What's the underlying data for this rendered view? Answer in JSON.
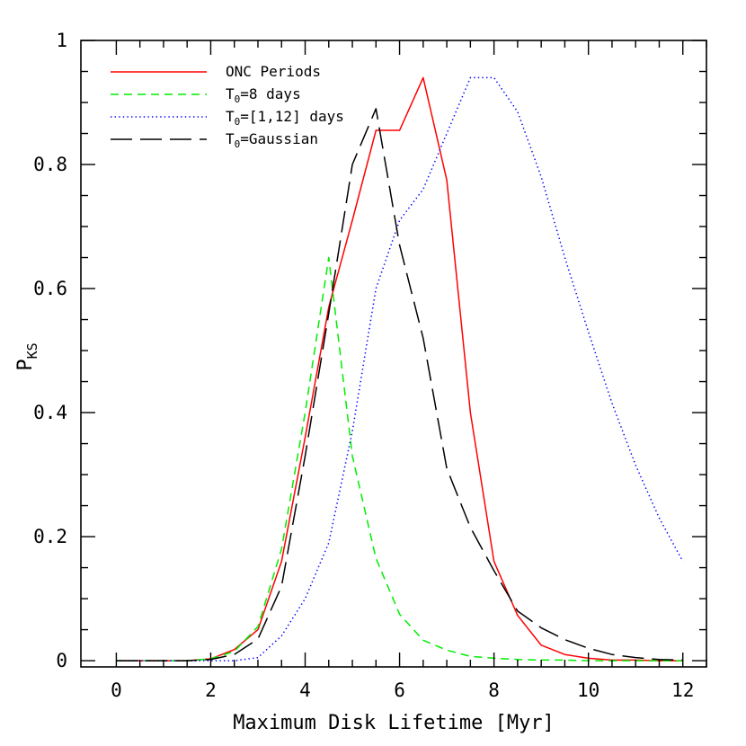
{
  "chart_data": {
    "type": "line",
    "xlabel": "Maximum Disk Lifetime [Myr]",
    "ylabel": "P",
    "ylabel_sub": "KS",
    "xlim": [
      -0.75,
      12.5
    ],
    "ylim": [
      -0.01,
      1.0
    ],
    "x_ticks": [
      0,
      2,
      4,
      6,
      8,
      10,
      12
    ],
    "y_ticks": [
      0,
      0.2,
      0.4,
      0.6,
      0.8,
      1
    ],
    "y_tick_labels": [
      "0",
      "0.2",
      "0.4",
      "0.6",
      "0.8",
      "1"
    ],
    "x_minor_step": 0.5,
    "y_minor_step": 0.05,
    "grid": false,
    "legend_position": "top-left",
    "series": [
      {
        "label": "ONC  Periods",
        "label_prefix": "",
        "label_sub": "",
        "color": "#ff0000",
        "dash": "solid",
        "x": [
          0,
          0.5,
          1,
          1.5,
          2,
          2.5,
          3,
          3.5,
          4,
          4.5,
          5,
          5.5,
          6,
          6.5,
          7,
          7.5,
          8,
          8.5,
          9,
          9.5,
          10,
          10.5,
          11,
          11.5,
          12
        ],
        "y": [
          0,
          0,
          0,
          0,
          0.003,
          0.018,
          0.05,
          0.16,
          0.36,
          0.57,
          0.71,
          0.855,
          0.855,
          0.94,
          0.775,
          0.4,
          0.16,
          0.073,
          0.025,
          0.01,
          0.004,
          0.001,
          0.001,
          0,
          0
        ]
      },
      {
        "label": "=8  days",
        "label_prefix": "T",
        "label_sub": "0",
        "color": "#00ee00",
        "dash": "dashed",
        "x": [
          0,
          0.5,
          1,
          1.5,
          2,
          2.5,
          3,
          3.5,
          4,
          4.5,
          5,
          5.5,
          6,
          6.5,
          7,
          7.5,
          8,
          8.5,
          9,
          9.5,
          10,
          10.5,
          11,
          11.5,
          12
        ],
        "y": [
          0,
          0,
          0,
          0,
          0.003,
          0.015,
          0.055,
          0.18,
          0.4,
          0.65,
          0.33,
          0.165,
          0.075,
          0.033,
          0.017,
          0.007,
          0.004,
          0.002,
          0.001,
          0.001,
          0,
          0,
          0,
          0,
          0
        ]
      },
      {
        "label": "=[1,12]  days",
        "label_prefix": "T",
        "label_sub": "0",
        "color": "#0000ff",
        "dash": "dotted",
        "x": [
          0,
          0.5,
          1,
          1.5,
          2,
          2.5,
          3,
          3.5,
          4,
          4.5,
          5,
          5.5,
          6,
          6.5,
          7,
          7.5,
          8,
          8.5,
          9,
          9.5,
          10,
          10.5,
          11,
          11.5,
          12
        ],
        "y": [
          0,
          0,
          0,
          0,
          0,
          0,
          0.005,
          0.04,
          0.1,
          0.19,
          0.37,
          0.6,
          0.71,
          0.76,
          0.85,
          0.94,
          0.94,
          0.885,
          0.78,
          0.65,
          0.53,
          0.415,
          0.315,
          0.23,
          0.16
        ]
      },
      {
        "label": "=Gaussian",
        "label_prefix": "T",
        "label_sub": "0",
        "color": "#000000",
        "dash": "longdash",
        "x": [
          0,
          0.5,
          1,
          1.5,
          2,
          2.5,
          3,
          3.5,
          4,
          4.5,
          5,
          5.5,
          6,
          6.5,
          7,
          7.5,
          8,
          8.5,
          9,
          9.5,
          10,
          10.5,
          11,
          11.5,
          12
        ],
        "y": [
          0,
          0,
          0,
          0,
          0.002,
          0.01,
          0.035,
          0.12,
          0.33,
          0.56,
          0.8,
          0.89,
          0.67,
          0.52,
          0.31,
          0.215,
          0.145,
          0.08,
          0.053,
          0.034,
          0.02,
          0.01,
          0.005,
          0.002,
          0.001
        ]
      }
    ]
  }
}
